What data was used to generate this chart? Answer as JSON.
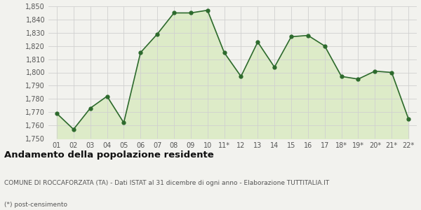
{
  "x_labels": [
    "01",
    "02",
    "03",
    "04",
    "05",
    "06",
    "07",
    "08",
    "09",
    "10",
    "11*",
    "12",
    "13",
    "14",
    "15",
    "16",
    "17",
    "18*",
    "19*",
    "20*",
    "21*",
    "22*"
  ],
  "y_values": [
    1769,
    1757,
    1773,
    1782,
    1762,
    1815,
    1829,
    1845,
    1845,
    1847,
    1815,
    1797,
    1823,
    1804,
    1827,
    1828,
    1820,
    1797,
    1795,
    1801,
    1800,
    1765
  ],
  "line_color": "#2d6a2d",
  "fill_color": "#ddebc8",
  "marker": "o",
  "marker_size": 3.5,
  "ylim": [
    1750,
    1850
  ],
  "yticks": [
    1750,
    1760,
    1770,
    1780,
    1790,
    1800,
    1810,
    1820,
    1830,
    1840,
    1850
  ],
  "title": "Andamento della popolazione residente",
  "subtitle": "COMUNE DI ROCCAFORZATA (TA) - Dati ISTAT al 31 dicembre di ogni anno - Elaborazione TUTTITALIA.IT",
  "footnote": "(*) post-censimento",
  "background_color": "#f2f2ee",
  "plot_bg_color": "#f2f2ee",
  "grid_color": "#d0d0d0",
  "title_fontsize": 9.5,
  "subtitle_fontsize": 6.5,
  "footnote_fontsize": 6.5,
  "tick_fontsize": 7,
  "label_color": "#555555"
}
